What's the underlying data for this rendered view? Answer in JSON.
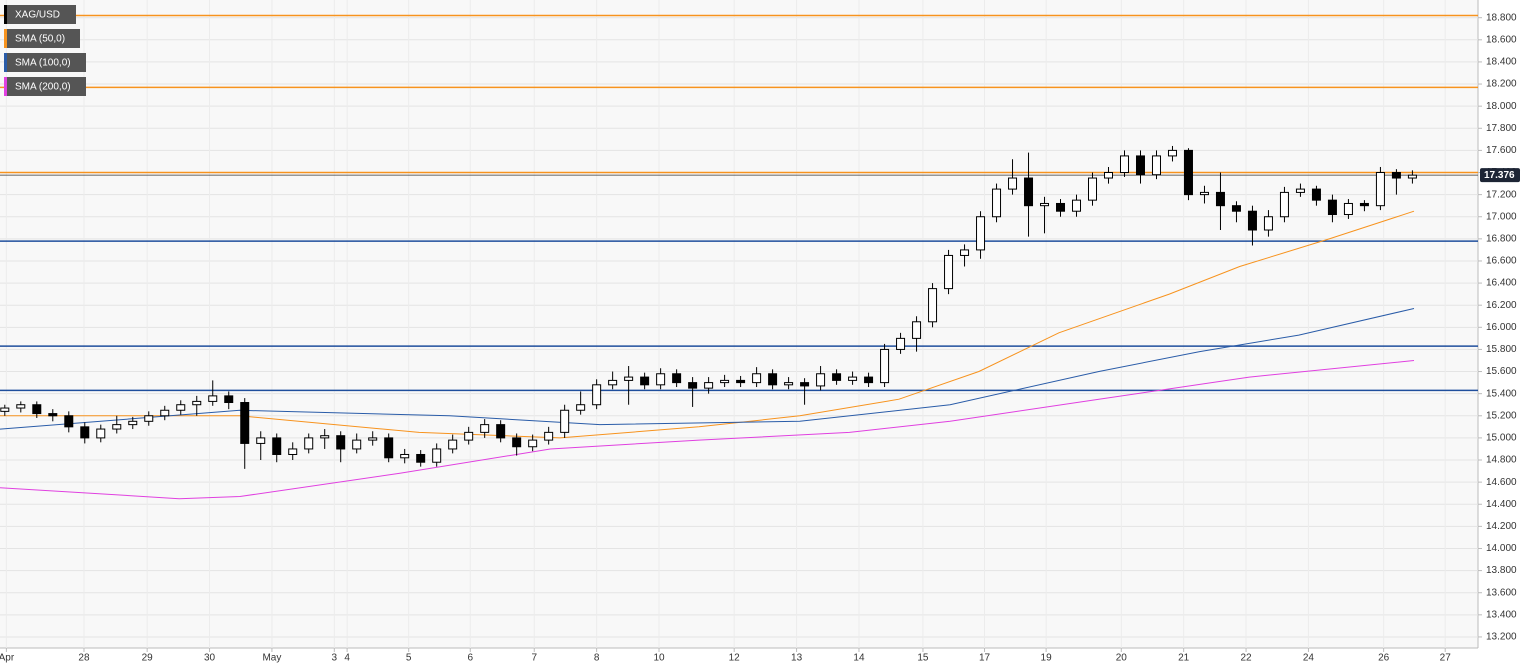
{
  "chart_data": {
    "type": "candlestick",
    "legend": [
      {
        "name": "XAG/USD",
        "color": "#000000"
      },
      {
        "name": "SMA (50,0)",
        "color": "#f7931e"
      },
      {
        "name": "SMA (100,0)",
        "color": "#2a5ca8"
      },
      {
        "name": "SMA (200,0)",
        "color": "#e040e0"
      }
    ],
    "xlim": [
      -0.3,
      92.1
    ],
    "ylim": [
      13.1,
      18.96
    ],
    "xticks": [
      {
        "value": 0.1,
        "label": "Apr"
      },
      {
        "value": 4.95,
        "label": "28"
      },
      {
        "value": 8.9,
        "label": "29"
      },
      {
        "value": 12.8,
        "label": "30"
      },
      {
        "value": 16.7,
        "label": "May"
      },
      {
        "value": 20.6,
        "label": "3"
      },
      {
        "value": 21.4,
        "label": "4"
      },
      {
        "value": 25.25,
        "label": "5"
      },
      {
        "value": 29.1,
        "label": "6"
      },
      {
        "value": 33.1,
        "label": "7"
      },
      {
        "value": 37,
        "label": "8"
      },
      {
        "value": 40.9,
        "label": "10"
      },
      {
        "value": 45.6,
        "label": "12"
      },
      {
        "value": 49.5,
        "label": "13"
      },
      {
        "value": 53.4,
        "label": "14"
      },
      {
        "value": 57.4,
        "label": "15"
      },
      {
        "value": 61.25,
        "label": "17"
      },
      {
        "value": 65.1,
        "label": "19"
      },
      {
        "value": 69.8,
        "label": "20"
      },
      {
        "value": 73.7,
        "label": "21"
      },
      {
        "value": 77.6,
        "label": "22"
      },
      {
        "value": 81.5,
        "label": "24"
      },
      {
        "value": 86.2,
        "label": "26"
      },
      {
        "value": 90.05,
        "label": "27"
      }
    ],
    "yticks": [
      {
        "value": 13.2,
        "label": "13.200"
      },
      {
        "value": 13.4,
        "label": "13.400"
      },
      {
        "value": 13.6,
        "label": "13.600"
      },
      {
        "value": 13.8,
        "label": "13.800"
      },
      {
        "value": 14.0,
        "label": "14.000"
      },
      {
        "value": 14.2,
        "label": "14.200"
      },
      {
        "value": 14.4,
        "label": "14.400"
      },
      {
        "value": 14.6,
        "label": "14.600"
      },
      {
        "value": 14.8,
        "label": "14.800"
      },
      {
        "value": 15.0,
        "label": "15.000"
      },
      {
        "value": 15.2,
        "label": "15.200"
      },
      {
        "value": 15.4,
        "label": "15.400"
      },
      {
        "value": 15.6,
        "label": "15.600"
      },
      {
        "value": 15.8,
        "label": "15.800"
      },
      {
        "value": 16.0,
        "label": "16.000"
      },
      {
        "value": 16.2,
        "label": "16.200"
      },
      {
        "value": 16.4,
        "label": "16.400"
      },
      {
        "value": 16.6,
        "label": "16.600"
      },
      {
        "value": 16.8,
        "label": "16.800"
      },
      {
        "value": 17.0,
        "label": "17.000"
      },
      {
        "value": 17.2,
        "label": "17.200"
      },
      {
        "value": 17.4,
        "label": "17.400"
      },
      {
        "value": 17.6,
        "label": "17.600"
      },
      {
        "value": 17.8,
        "label": "17.800"
      },
      {
        "value": 18.0,
        "label": "18.000"
      },
      {
        "value": 18.2,
        "label": "18.200"
      },
      {
        "value": 18.4,
        "label": "18.400"
      },
      {
        "value": 18.6,
        "label": "18.600"
      },
      {
        "value": 18.8,
        "label": "18.800"
      }
    ],
    "grid": true,
    "up_color": "#ffffff",
    "down_color": "#000000",
    "candles": [
      [
        15.24,
        15.3,
        15.2,
        15.27
      ],
      [
        15.27,
        15.33,
        15.23,
        15.3
      ],
      [
        15.3,
        15.33,
        15.18,
        15.22
      ],
      [
        15.22,
        15.26,
        15.15,
        15.2
      ],
      [
        15.2,
        15.24,
        15.05,
        15.1
      ],
      [
        15.1,
        15.14,
        14.95,
        15.0
      ],
      [
        15.0,
        15.12,
        14.96,
        15.08
      ],
      [
        15.08,
        15.2,
        15.04,
        15.12
      ],
      [
        15.12,
        15.19,
        15.08,
        15.15
      ],
      [
        15.15,
        15.24,
        15.11,
        15.2
      ],
      [
        15.2,
        15.29,
        15.16,
        15.25
      ],
      [
        15.25,
        15.34,
        15.21,
        15.3
      ],
      [
        15.3,
        15.38,
        15.2,
        15.33
      ],
      [
        15.33,
        15.52,
        15.29,
        15.38
      ],
      [
        15.38,
        15.42,
        15.26,
        15.32
      ],
      [
        15.32,
        15.36,
        14.72,
        14.95
      ],
      [
        14.95,
        15.06,
        14.8,
        15.0
      ],
      [
        15.0,
        15.04,
        14.78,
        14.85
      ],
      [
        14.85,
        14.96,
        14.8,
        14.9
      ],
      [
        14.9,
        15.04,
        14.86,
        15.0
      ],
      [
        15.0,
        15.08,
        14.9,
        15.02
      ],
      [
        15.02,
        15.06,
        14.78,
        14.9
      ],
      [
        14.9,
        15.04,
        14.86,
        14.98
      ],
      [
        14.98,
        15.06,
        14.93,
        15.0
      ],
      [
        15.0,
        15.04,
        14.78,
        14.82
      ],
      [
        14.82,
        14.9,
        14.77,
        14.85
      ],
      [
        14.85,
        14.89,
        14.74,
        14.78
      ],
      [
        14.78,
        14.95,
        14.74,
        14.9
      ],
      [
        14.9,
        15.03,
        14.86,
        14.98
      ],
      [
        14.98,
        15.1,
        14.94,
        15.05
      ],
      [
        15.05,
        15.17,
        15.0,
        15.12
      ],
      [
        15.12,
        15.16,
        14.96,
        15.0
      ],
      [
        15.0,
        15.04,
        14.84,
        14.92
      ],
      [
        14.92,
        15.03,
        14.88,
        14.98
      ],
      [
        14.98,
        15.1,
        14.94,
        15.05
      ],
      [
        15.05,
        15.3,
        15.0,
        15.25
      ],
      [
        15.25,
        15.42,
        15.21,
        15.3
      ],
      [
        15.3,
        15.53,
        15.26,
        15.48
      ],
      [
        15.48,
        15.6,
        15.44,
        15.52
      ],
      [
        15.52,
        15.65,
        15.3,
        15.55
      ],
      [
        15.55,
        15.59,
        15.44,
        15.48
      ],
      [
        15.48,
        15.63,
        15.44,
        15.58
      ],
      [
        15.58,
        15.62,
        15.46,
        15.5
      ],
      [
        15.5,
        15.55,
        15.28,
        15.45
      ],
      [
        15.45,
        15.55,
        15.4,
        15.5
      ],
      [
        15.5,
        15.57,
        15.46,
        15.52
      ],
      [
        15.52,
        15.56,
        15.46,
        15.5
      ],
      [
        15.5,
        15.64,
        15.46,
        15.58
      ],
      [
        15.58,
        15.62,
        15.44,
        15.48
      ],
      [
        15.48,
        15.55,
        15.44,
        15.5
      ],
      [
        15.5,
        15.54,
        15.3,
        15.47
      ],
      [
        15.47,
        15.65,
        15.43,
        15.58
      ],
      [
        15.58,
        15.62,
        15.48,
        15.52
      ],
      [
        15.52,
        15.6,
        15.48,
        15.55
      ],
      [
        15.55,
        15.59,
        15.46,
        15.5
      ],
      [
        15.5,
        15.85,
        15.46,
        15.8
      ],
      [
        15.8,
        15.95,
        15.76,
        15.9
      ],
      [
        15.9,
        16.1,
        15.78,
        16.05
      ],
      [
        16.05,
        16.4,
        16.0,
        16.35
      ],
      [
        16.35,
        16.7,
        16.3,
        16.65
      ],
      [
        16.65,
        16.75,
        16.55,
        16.7
      ],
      [
        16.7,
        17.05,
        16.62,
        17.0
      ],
      [
        17.0,
        17.3,
        16.95,
        17.25
      ],
      [
        17.25,
        17.52,
        17.2,
        17.35
      ],
      [
        17.35,
        17.58,
        16.82,
        17.1
      ],
      [
        17.1,
        17.18,
        16.85,
        17.12
      ],
      [
        17.12,
        17.16,
        17.0,
        17.05
      ],
      [
        17.05,
        17.2,
        17.0,
        17.15
      ],
      [
        17.15,
        17.4,
        17.1,
        17.35
      ],
      [
        17.35,
        17.45,
        17.3,
        17.4
      ],
      [
        17.4,
        17.6,
        17.36,
        17.55
      ],
      [
        17.55,
        17.6,
        17.3,
        17.38
      ],
      [
        17.38,
        17.6,
        17.34,
        17.55
      ],
      [
        17.55,
        17.64,
        17.5,
        17.6
      ],
      [
        17.6,
        17.62,
        17.15,
        17.2
      ],
      [
        17.2,
        17.28,
        17.12,
        17.22
      ],
      [
        17.22,
        17.4,
        16.88,
        17.1
      ],
      [
        17.1,
        17.14,
        16.95,
        17.05
      ],
      [
        17.05,
        17.1,
        16.74,
        16.88
      ],
      [
        16.88,
        17.06,
        16.82,
        17.0
      ],
      [
        17.0,
        17.27,
        16.95,
        17.22
      ],
      [
        17.22,
        17.3,
        17.18,
        17.25
      ],
      [
        17.25,
        17.28,
        17.1,
        17.15
      ],
      [
        17.15,
        17.2,
        16.95,
        17.02
      ],
      [
        17.02,
        17.16,
        16.98,
        17.12
      ],
      [
        17.12,
        17.15,
        17.05,
        17.1
      ],
      [
        17.1,
        17.45,
        17.06,
        17.4
      ],
      [
        17.4,
        17.43,
        17.2,
        17.35
      ],
      [
        17.35,
        17.42,
        17.3,
        17.376
      ]
    ],
    "series": [
      {
        "name": "SMA (50,0)",
        "color": "#f7931e",
        "x": [
          -0.3,
          14.7,
          25.9,
          34.7,
          43.4,
          49.7,
          55.9,
          60.9,
          65.9,
          72.8,
          77.2,
          82.8,
          88.1
        ],
        "values": [
          15.2,
          15.2,
          15.05,
          15.0,
          15.1,
          15.2,
          15.35,
          15.6,
          15.95,
          16.3,
          16.55,
          16.8,
          17.05
        ]
      },
      {
        "name": "SMA (100,0)",
        "color": "#2a5ca8",
        "x": [
          -0.3,
          14.7,
          27.8,
          37.2,
          49.7,
          59.1,
          68.4,
          74.7,
          80.9,
          88.1
        ],
        "values": [
          15.08,
          15.25,
          15.2,
          15.12,
          15.15,
          15.3,
          15.6,
          15.78,
          15.93,
          16.17
        ]
      },
      {
        "name": "SMA (200,0)",
        "color": "#e040e0",
        "x": [
          -0.3,
          10.9,
          14.7,
          24.7,
          34.1,
          43.4,
          52.8,
          59.1,
          68.4,
          77.8,
          88.1
        ],
        "values": [
          14.55,
          14.45,
          14.47,
          14.68,
          14.9,
          14.98,
          15.05,
          15.15,
          15.35,
          15.55,
          15.7
        ]
      }
    ],
    "levels": [
      {
        "value": 18.82,
        "color": "#f7931e"
      },
      {
        "value": 18.17,
        "color": "#f7931e"
      },
      {
        "value": 17.4,
        "color": "#f7931e"
      },
      {
        "value": 16.78,
        "color": "#1f4e9c"
      },
      {
        "value": 15.83,
        "color": "#1f4e9c"
      },
      {
        "value": 15.43,
        "color": "#1f4e9c"
      }
    ],
    "last_price": 17.376
  }
}
